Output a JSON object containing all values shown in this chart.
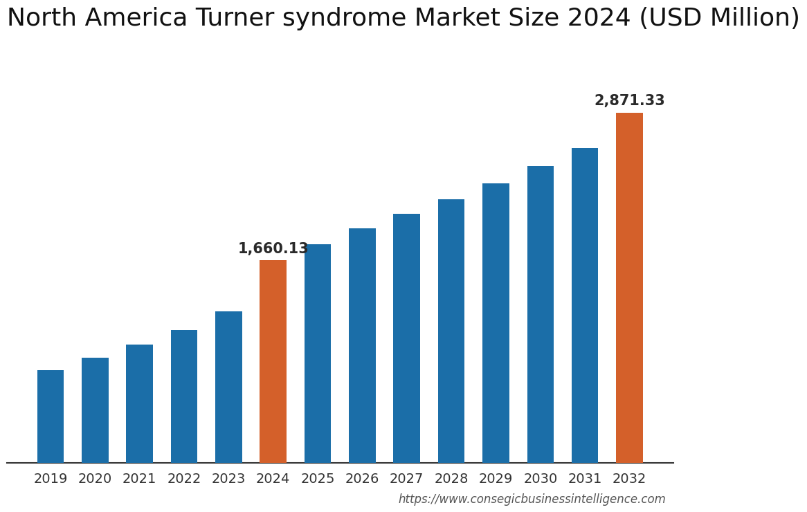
{
  "title": "North America Turner syndrome Market Size 2024 (USD Million)",
  "years": [
    2019,
    2020,
    2021,
    2022,
    2023,
    2024,
    2025,
    2026,
    2027,
    2028,
    2029,
    2030,
    2031,
    2032
  ],
  "values": [
    760,
    860,
    970,
    1090,
    1240,
    1660.13,
    1790,
    1920,
    2040,
    2160,
    2290,
    2430,
    2580,
    2871.33
  ],
  "bar_colors": [
    "#1B6EA8",
    "#1B6EA8",
    "#1B6EA8",
    "#1B6EA8",
    "#1B6EA8",
    "#D4602A",
    "#1B6EA8",
    "#1B6EA8",
    "#1B6EA8",
    "#1B6EA8",
    "#1B6EA8",
    "#1B6EA8",
    "#1B6EA8",
    "#D4602A"
  ],
  "highlight_labels": {
    "2024": "1,660.13",
    "2032": "2,871.33"
  },
  "highlight_indices": [
    5,
    13
  ],
  "url": "https://www.consegicbusinessintelligence.com",
  "background_color": "#ffffff",
  "title_fontsize": 26,
  "label_fontsize": 15,
  "tick_fontsize": 14,
  "url_fontsize": 12,
  "ylim": [
    0,
    3400
  ],
  "bar_width": 0.6
}
